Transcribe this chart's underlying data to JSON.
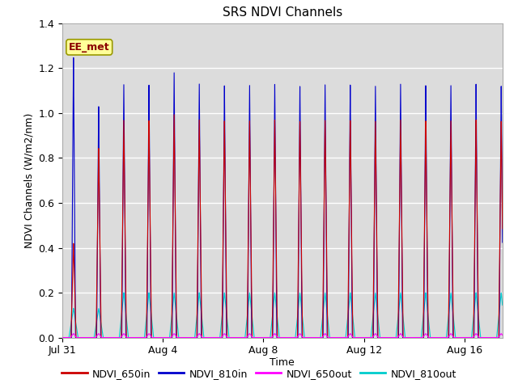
{
  "title": "SRS NDVI Channels",
  "xlabel": "Time",
  "ylabel": "NDVI Channels (W/m2/nm)",
  "ylim": [
    0.0,
    1.4
  ],
  "yticks": [
    0.0,
    0.2,
    0.4,
    0.6,
    0.8,
    1.0,
    1.2,
    1.4
  ],
  "bg_color": "#dcdcdc",
  "annotation_text": "EE_met",
  "annotation_color": "#8b0000",
  "annotation_bg": "#ffff99",
  "annotation_edge": "#999900",
  "line_colors": {
    "NDVI_650in": "#cc0000",
    "NDVI_810in": "#0000cc",
    "NDVI_650out": "#ff00ff",
    "NDVI_810out": "#00cccc"
  },
  "legend_labels": [
    "NDVI_650in",
    "NDVI_810in",
    "NDVI_650out",
    "NDVI_810out"
  ],
  "n_days": 17.5,
  "tick_positions": [
    0,
    4,
    8,
    12,
    16
  ],
  "tick_labels": [
    "Jul 31",
    "Aug 4",
    "Aug 8",
    "Aug 12",
    "Aug 16"
  ]
}
